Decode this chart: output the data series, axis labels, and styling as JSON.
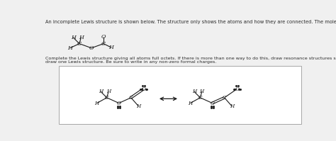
{
  "title_text": "An incomplete Lewis structure is shown below. The structure only shows the atoms and how they are connected. The molecule has a net charge of zero.",
  "body_text1": "Complete the Lewis structure giving all atoms full octets. If there is more than one way to do this, draw resonance structures showing all possibilities. If not, just",
  "body_text2": "draw one Lewis structure. Be sure to write in any non-zero formal charges.",
  "bg_color": "#f0f0f0",
  "white_box_color": "#ffffff",
  "text_color": "#2a2a2a",
  "line_color": "#1a1a1a",
  "font_size_title": 4.8,
  "font_size_body": 4.6,
  "font_size_atom": 5.8,
  "font_size_atom_sm": 5.2
}
